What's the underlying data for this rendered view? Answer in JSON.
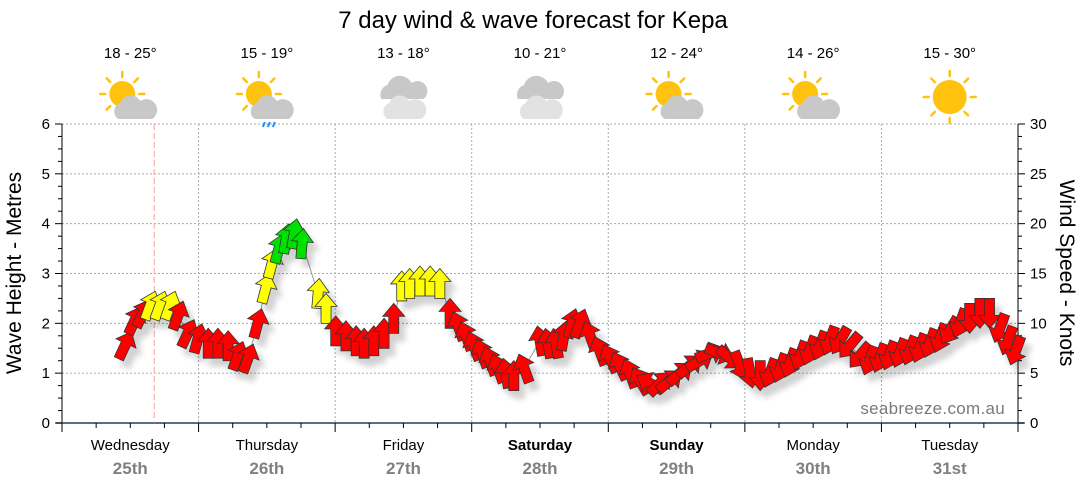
{
  "chart_data": {
    "type": "scatter",
    "title": "7 day wind & wave forecast for Kepa",
    "ylabel": "Wave Height - Metres",
    "y2label": "Wind Speed - Knots",
    "ylim": [
      0,
      6
    ],
    "y2lim": [
      0,
      30
    ],
    "yticks": [
      "0",
      "1",
      "2",
      "3",
      "4",
      "5",
      "6"
    ],
    "y2ticks": [
      "0",
      "5",
      "10",
      "15",
      "20",
      "25",
      "30"
    ],
    "grid": true,
    "watermark": "seabreeze.com.au",
    "now_hour": 16.2,
    "colors": {
      "r": "#ff0000",
      "y": "#ffff00",
      "g": "#00e000"
    },
    "days": [
      {
        "name": "Wednesday",
        "date": "25th",
        "temp": "18 - 25°",
        "icon": "sun-cloud-icon",
        "bold": false
      },
      {
        "name": "Thursday",
        "date": "26th",
        "temp": "15 - 19°",
        "icon": "sun-cloud-rain-icon",
        "bold": false
      },
      {
        "name": "Friday",
        "date": "27th",
        "temp": "13 - 18°",
        "icon": "cloud-icon",
        "bold": false
      },
      {
        "name": "Saturday",
        "date": "28th",
        "temp": "10 - 21°",
        "icon": "cloud-icon",
        "bold": true
      },
      {
        "name": "Sunday",
        "date": "29th",
        "temp": "12 - 24°",
        "icon": "sun-cloud-icon",
        "bold": true
      },
      {
        "name": "Monday",
        "date": "30th",
        "temp": "14 - 26°",
        "icon": "sun-cloud-icon",
        "bold": false
      },
      {
        "name": "Tuesday",
        "date": "31st",
        "temp": "15 - 30°",
        "icon": "sun-icon",
        "bold": false
      }
    ],
    "series_fields": [
      "hour_from_wed_0000",
      "wave_height_m",
      "arrow_bearing_deg",
      "wind_color_level"
    ],
    "points": [
      [
        11.1,
        1.56,
        25,
        "r"
      ],
      [
        12.8,
        2.06,
        25,
        "r"
      ],
      [
        14.2,
        2.2,
        25,
        "r"
      ],
      [
        15.5,
        2.36,
        20,
        "y"
      ],
      [
        17.2,
        2.36,
        20,
        "y"
      ],
      [
        19.0,
        2.36,
        20,
        "y"
      ],
      [
        20.4,
        2.16,
        20,
        "r"
      ],
      [
        22.1,
        1.8,
        25,
        "r"
      ],
      [
        23.9,
        1.7,
        15,
        "r"
      ],
      [
        25.7,
        1.6,
        0,
        "r"
      ],
      [
        27.4,
        1.6,
        0,
        "r"
      ],
      [
        29.2,
        1.55,
        0,
        "r"
      ],
      [
        30.9,
        1.35,
        20,
        "r"
      ],
      [
        32.7,
        1.3,
        20,
        "r"
      ],
      [
        34.4,
        2.0,
        15,
        "r"
      ],
      [
        35.8,
        2.7,
        15,
        "y"
      ],
      [
        36.9,
        3.2,
        15,
        "y"
      ],
      [
        38.1,
        3.5,
        15,
        "g"
      ],
      [
        39.4,
        3.7,
        10,
        "g"
      ],
      [
        40.8,
        3.8,
        10,
        "g"
      ],
      [
        42.2,
        3.6,
        5,
        "g"
      ],
      [
        45.0,
        2.6,
        5,
        "y"
      ],
      [
        46.4,
        2.3,
        0,
        "y"
      ],
      [
        48.1,
        1.85,
        0,
        "r"
      ],
      [
        49.9,
        1.75,
        0,
        "r"
      ],
      [
        51.7,
        1.65,
        0,
        "r"
      ],
      [
        53.1,
        1.6,
        0,
        "r"
      ],
      [
        54.8,
        1.65,
        0,
        "r"
      ],
      [
        56.6,
        1.8,
        0,
        "r"
      ],
      [
        58.3,
        2.1,
        0,
        "r"
      ],
      [
        59.7,
        2.75,
        0,
        "y"
      ],
      [
        61.1,
        2.8,
        0,
        "y"
      ],
      [
        62.9,
        2.85,
        0,
        "y"
      ],
      [
        64.7,
        2.85,
        0,
        "y"
      ],
      [
        66.4,
        2.8,
        0,
        "y"
      ],
      [
        68.2,
        2.2,
        0,
        "r"
      ],
      [
        69.6,
        1.95,
        -20,
        "r"
      ],
      [
        71.0,
        1.75,
        -20,
        "r"
      ],
      [
        72.4,
        1.55,
        -20,
        "r"
      ],
      [
        73.8,
        1.4,
        -20,
        "r"
      ],
      [
        75.2,
        1.25,
        -20,
        "r"
      ],
      [
        76.6,
        1.1,
        -20,
        "r"
      ],
      [
        78.0,
        1.0,
        -10,
        "r"
      ],
      [
        79.4,
        0.95,
        0,
        "r"
      ],
      [
        81.2,
        1.1,
        -20,
        "r"
      ],
      [
        84.0,
        1.65,
        -10,
        "r"
      ],
      [
        85.4,
        1.6,
        -10,
        "r"
      ],
      [
        86.8,
        1.6,
        -10,
        "r"
      ],
      [
        88.2,
        1.75,
        10,
        "r"
      ],
      [
        89.6,
        2.0,
        15,
        "r"
      ],
      [
        91.0,
        2.0,
        20,
        "r"
      ],
      [
        92.8,
        1.75,
        -20,
        "r"
      ],
      [
        94.5,
        1.45,
        -20,
        "r"
      ],
      [
        96.3,
        1.3,
        -25,
        "r"
      ],
      [
        98.0,
        1.15,
        -25,
        "r"
      ],
      [
        99.8,
        1.0,
        -20,
        "r"
      ],
      [
        101.6,
        0.85,
        -30,
        "r"
      ],
      [
        103.3,
        0.8,
        -60,
        "r"
      ],
      [
        105.1,
        0.8,
        45,
        "r"
      ],
      [
        106.8,
        0.85,
        50,
        "r"
      ],
      [
        108.6,
        1.0,
        50,
        "r"
      ],
      [
        110.3,
        1.15,
        50,
        "r"
      ],
      [
        112.1,
        1.25,
        60,
        "r"
      ],
      [
        113.9,
        1.4,
        70,
        "r"
      ],
      [
        115.6,
        1.4,
        110,
        "r"
      ],
      [
        117.4,
        1.3,
        130,
        "r"
      ],
      [
        119.1,
        1.15,
        160,
        "r"
      ],
      [
        120.9,
        1.0,
        170,
        "r"
      ],
      [
        122.7,
        0.95,
        180,
        "r"
      ],
      [
        124.4,
        1.0,
        200,
        "r"
      ],
      [
        126.2,
        1.1,
        200,
        "r"
      ],
      [
        127.9,
        1.2,
        200,
        "r"
      ],
      [
        129.7,
        1.35,
        200,
        "r"
      ],
      [
        131.4,
        1.45,
        200,
        "r"
      ],
      [
        133.2,
        1.55,
        200,
        "r"
      ],
      [
        134.9,
        1.65,
        200,
        "r"
      ],
      [
        136.7,
        1.65,
        210,
        "r"
      ],
      [
        138.4,
        1.55,
        220,
        "r"
      ],
      [
        140.2,
        1.35,
        220,
        "r"
      ],
      [
        141.9,
        1.25,
        200,
        "r"
      ],
      [
        143.7,
        1.3,
        200,
        "r"
      ],
      [
        145.4,
        1.35,
        200,
        "r"
      ],
      [
        147.2,
        1.4,
        200,
        "r"
      ],
      [
        149.0,
        1.45,
        200,
        "r"
      ],
      [
        150.7,
        1.5,
        200,
        "r"
      ],
      [
        152.5,
        1.6,
        200,
        "r"
      ],
      [
        154.3,
        1.7,
        200,
        "r"
      ],
      [
        156.0,
        1.85,
        210,
        "r"
      ],
      [
        157.8,
        2.0,
        200,
        "r"
      ],
      [
        159.5,
        2.1,
        180,
        "r"
      ],
      [
        161.3,
        2.2,
        180,
        "r"
      ],
      [
        163.0,
        2.2,
        180,
        "r"
      ],
      [
        164.8,
        1.9,
        200,
        "r"
      ],
      [
        166.2,
        1.65,
        200,
        "r"
      ],
      [
        167.6,
        1.45,
        200,
        "r"
      ]
    ]
  }
}
